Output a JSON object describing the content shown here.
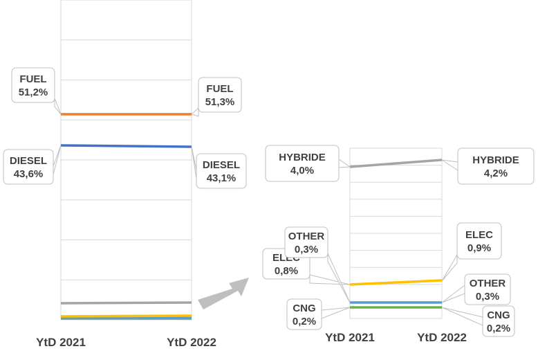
{
  "chart_data": [
    {
      "type": "line",
      "categories": [
        "YtD 2021",
        "YtD 2022"
      ],
      "ylim": [
        0,
        80
      ],
      "grid": true,
      "series": [
        {
          "name": "FUEL",
          "values": [
            51.2,
            51.3
          ],
          "labels": [
            "51,2%",
            "51,3%"
          ],
          "color": "#ED7D31"
        },
        {
          "name": "DIESEL",
          "values": [
            43.6,
            43.1
          ],
          "labels": [
            "43,6%",
            "43,1%"
          ],
          "color": "#4472C4"
        },
        {
          "name": "HYBRIDE",
          "values": [
            4.0,
            4.2
          ],
          "color": "#A5A5A5"
        },
        {
          "name": "ELEC",
          "values": [
            0.8,
            0.9
          ],
          "color": "#FFC000"
        },
        {
          "name": "OTHER",
          "values": [
            0.3,
            0.3
          ],
          "color": "#5B9BD5"
        },
        {
          "name": "CNG",
          "values": [
            0.2,
            0.2
          ],
          "color": "#70AD47"
        }
      ]
    },
    {
      "type": "line",
      "categories": [
        "YtD 2021",
        "YtD 2022"
      ],
      "ylim": [
        0,
        5
      ],
      "grid": true,
      "series": [
        {
          "name": "HYBRIDE",
          "values": [
            4.0,
            4.2
          ],
          "labels": [
            "4,0%",
            "4,2%"
          ],
          "color": "#A5A5A5"
        },
        {
          "name": "ELEC",
          "values": [
            0.8,
            0.9
          ],
          "labels": [
            "0,8%",
            "0,9%"
          ],
          "color": "#FFC000"
        },
        {
          "name": "OTHER",
          "values": [
            0.3,
            0.3
          ],
          "labels": [
            "0,3%",
            "0,3%"
          ],
          "color": "#5B9BD5"
        },
        {
          "name": "CNG",
          "values": [
            0.2,
            0.2
          ],
          "labels": [
            "0,2%",
            "0,2%"
          ],
          "color": "#70AD47"
        }
      ]
    }
  ],
  "arrow_color": "#BFBFBF"
}
